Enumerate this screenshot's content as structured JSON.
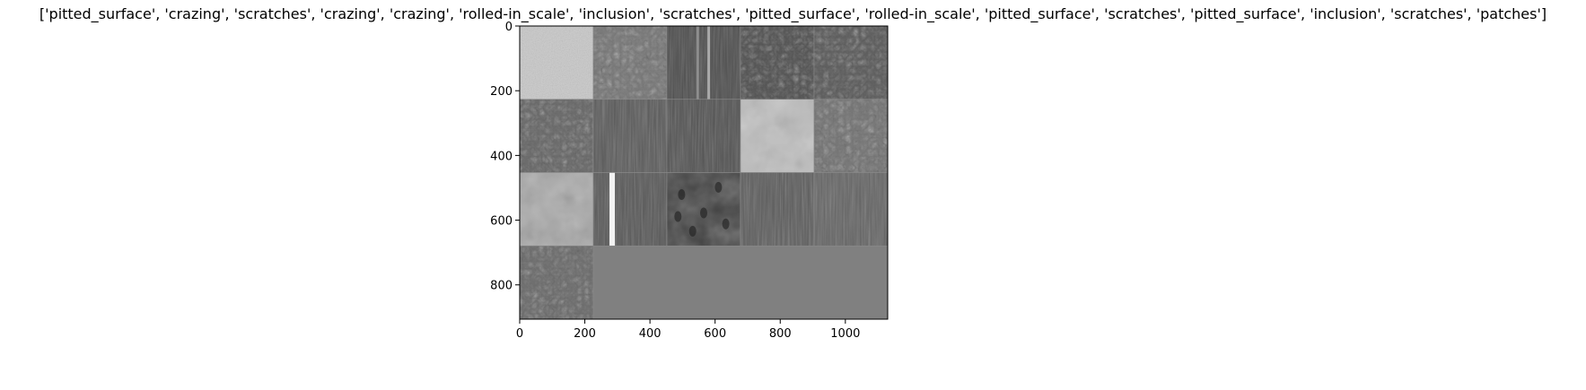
{
  "title": "['pitted_surface', 'crazing', 'scratches', 'crazing', 'crazing', 'rolled-in_scale', 'inclusion', 'scratches', 'pitted_surface', 'rolled-in_scale', 'pitted_surface', 'scratches', 'pitted_surface', 'inclusion', 'scratches', 'patches']",
  "chart_data": {
    "type": "heatmap",
    "description_free_grid": {
      "rows": 4,
      "cols": 5,
      "filled_tiles": 16
    },
    "x_ticks": [
      0,
      200,
      400,
      600,
      800,
      1000
    ],
    "y_ticks": [
      0,
      200,
      400,
      600,
      800
    ],
    "xlim": [
      0,
      1130
    ],
    "ylim": [
      906,
      0
    ],
    "tiles": [
      {
        "row": 0,
        "col": 0,
        "tone": "#c8c8c8",
        "texture": "light-grain"
      },
      {
        "row": 0,
        "col": 1,
        "tone": "#7a7a7a",
        "texture": "crazing"
      },
      {
        "row": 0,
        "col": 2,
        "tone": "#4a4a4a",
        "texture": "scratch-lines"
      },
      {
        "row": 0,
        "col": 3,
        "tone": "#555555",
        "texture": "crazing"
      },
      {
        "row": 0,
        "col": 4,
        "tone": "#5e5e5e",
        "texture": "crazing"
      },
      {
        "row": 1,
        "col": 0,
        "tone": "#6a6a6a",
        "texture": "rolled"
      },
      {
        "row": 1,
        "col": 1,
        "tone": "#585858",
        "texture": "streaks"
      },
      {
        "row": 1,
        "col": 2,
        "tone": "#505050",
        "texture": "streaks"
      },
      {
        "row": 1,
        "col": 3,
        "tone": "#bdbdbd",
        "texture": "blotch"
      },
      {
        "row": 1,
        "col": 4,
        "tone": "#777777",
        "texture": "rolled"
      },
      {
        "row": 2,
        "col": 0,
        "tone": "#a8a8a8",
        "texture": "blotch"
      },
      {
        "row": 2,
        "col": 1,
        "tone": "#555555",
        "texture": "bright-scratch"
      },
      {
        "row": 2,
        "col": 2,
        "tone": "#3d3d3d",
        "texture": "pits"
      },
      {
        "row": 2,
        "col": 3,
        "tone": "#5a5a5a",
        "texture": "streaks"
      },
      {
        "row": 2,
        "col": 4,
        "tone": "#626262",
        "texture": "streaks"
      },
      {
        "row": 3,
        "col": 0,
        "tone": "#6e6e6e",
        "texture": "patches"
      }
    ],
    "empty_fill": "#808080"
  }
}
